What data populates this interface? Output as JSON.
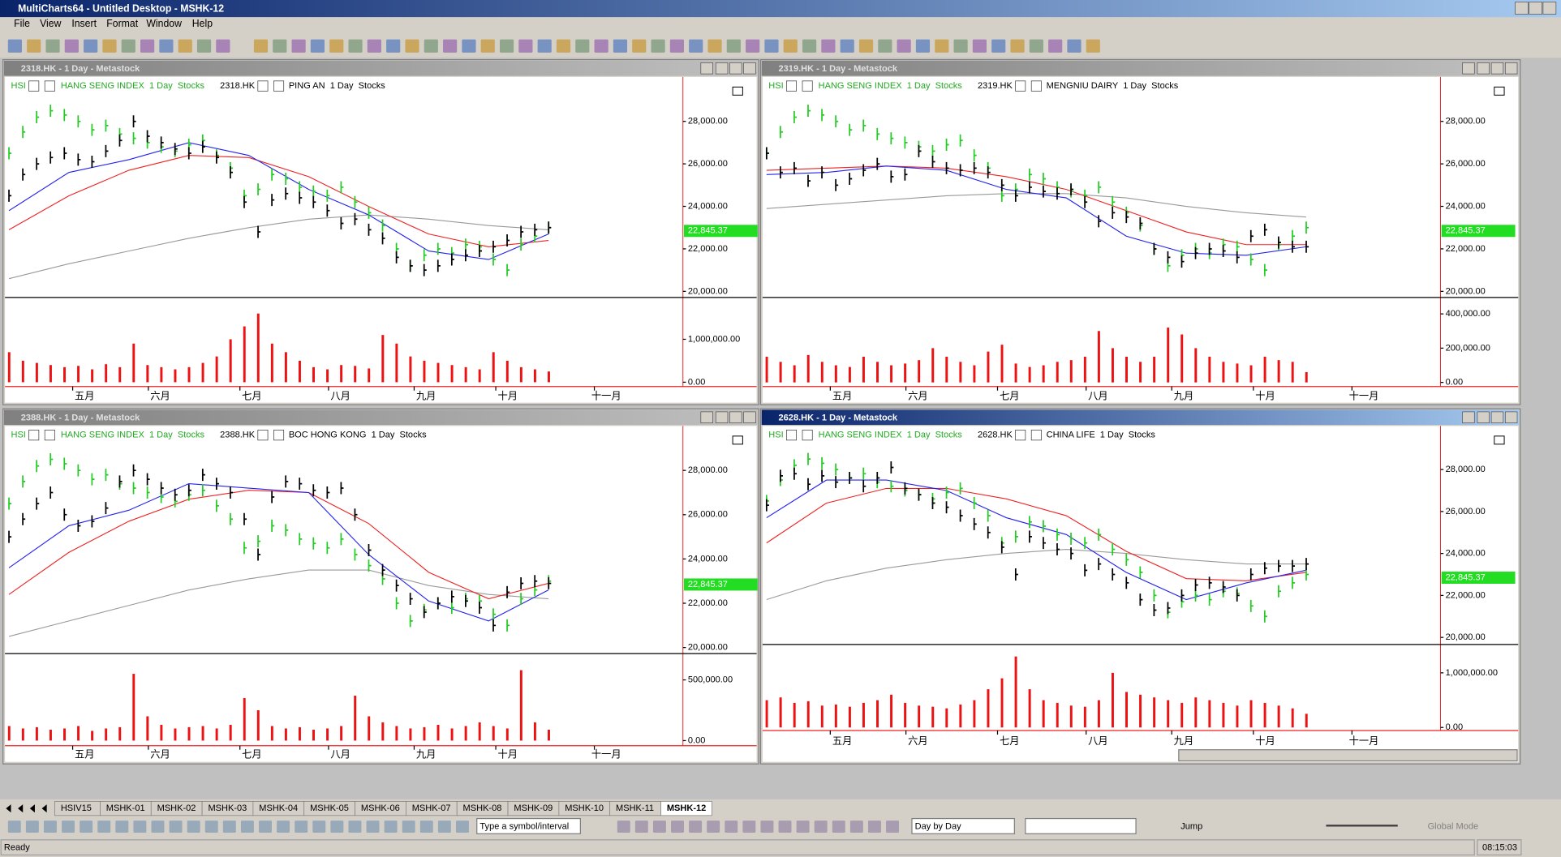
{
  "window": {
    "title": "MultiCharts64 - Untitled Desktop - MSHK-12"
  },
  "menu": [
    "File",
    "View",
    "Insert",
    "Format",
    "Window",
    "Help"
  ],
  "hsi": {
    "label": "HSI",
    "description": "HANG SENG INDEX  1 Day  Stocks",
    "color": "#22cc22",
    "values": [
      26500,
      27500,
      28200,
      28500,
      28300,
      28000,
      27600,
      27800,
      27400,
      27200,
      27000,
      26800,
      26600,
      26900,
      27100,
      26400,
      25800,
      24500,
      24800,
      25500,
      25300,
      24900,
      24700,
      24500,
      24900,
      24200,
      23700,
      23100,
      22000,
      21200,
      21700,
      22000,
      21800,
      22200,
      22100,
      21500,
      21000,
      22200,
      22600,
      23000
    ]
  },
  "months": [
    "五月",
    "六月",
    "七月",
    "八月",
    "九月",
    "十月",
    "十一月"
  ],
  "panels": [
    {
      "title": "2318.HK - 1 Day - Metastock",
      "symbol": "2318.HK",
      "description": "PING AN  1 Day  Stocks",
      "active": false,
      "price": {
        "ylim": [
          19760,
          29950
        ],
        "yticks": [
          {
            "value": 20000,
            "label": "20,000.00"
          },
          {
            "value": 22000,
            "label": "22,000.00"
          },
          {
            "value": 24000,
            "label": "24,000.00"
          },
          {
            "value": 26000,
            "label": "26,000.00"
          },
          {
            "value": 28000,
            "label": "28,000.00"
          }
        ],
        "last": {
          "value": 22845.37,
          "label": "22,845.37"
        },
        "color": "#000000",
        "values": [
          24500,
          25500,
          26000,
          26300,
          26500,
          26200,
          26100,
          26600,
          27100,
          28000,
          27300,
          27000,
          26700,
          26500,
          26800,
          26300,
          25600,
          24200,
          22800,
          24300,
          24600,
          24400,
          24200,
          23800,
          23200,
          23400,
          22900,
          22500,
          21600,
          21200,
          21000,
          21200,
          21500,
          21700,
          21900,
          22100,
          22400,
          22800,
          22900,
          23000
        ]
      },
      "ma": [
        {
          "color": "#999999",
          "values": [
            20600,
            21300,
            21900,
            22500,
            23000,
            23400,
            23600,
            23400,
            23100,
            22900
          ]
        },
        {
          "color": "#ee2222",
          "values": [
            22900,
            24500,
            25700,
            26400,
            26300,
            25400,
            24000,
            22700,
            22100,
            22400
          ]
        },
        {
          "color": "#2222ee",
          "values": [
            23800,
            25600,
            26200,
            27000,
            26400,
            24800,
            23600,
            21900,
            21500,
            22700
          ]
        }
      ],
      "volume": {
        "ylim": [
          -100000,
          1950000
        ],
        "yticks": [
          {
            "value": 0,
            "label": "0.00"
          },
          {
            "value": 1000000,
            "label": "1,000,000.00"
          }
        ],
        "color": "#ee1111",
        "values": [
          700000,
          500000,
          450000,
          400000,
          350000,
          380000,
          300000,
          420000,
          350000,
          900000,
          400000,
          350000,
          300000,
          350000,
          450000,
          600000,
          1000000,
          1300000,
          1600000,
          900000,
          700000,
          500000,
          350000,
          300000,
          400000,
          380000,
          320000,
          1100000,
          900000,
          600000,
          500000,
          450000,
          400000,
          350000,
          300000,
          700000,
          500000,
          350000,
          300000,
          250000
        ]
      }
    },
    {
      "title": "2319.HK - 1 Day - Metastock",
      "symbol": "2319.HK",
      "description": "MENGNIU DAIRY  1 Day  Stocks",
      "active": false,
      "price": {
        "ylim": [
          19760,
          29950
        ],
        "yticks": [
          {
            "value": 20000,
            "label": "20,000.00"
          },
          {
            "value": 22000,
            "label": "22,000.00"
          },
          {
            "value": 24000,
            "label": "24,000.00"
          },
          {
            "value": 26000,
            "label": "26,000.00"
          },
          {
            "value": 28000,
            "label": "28,000.00"
          }
        ],
        "last": {
          "value": 22845.37,
          "label": "22,845.37"
        },
        "color": "#000000",
        "values": [
          26500,
          25600,
          25800,
          25200,
          25600,
          25000,
          25300,
          25700,
          26000,
          25400,
          25500,
          26600,
          26100,
          25800,
          25700,
          25800,
          25600,
          25000,
          24500,
          24900,
          24700,
          24600,
          24800,
          24200,
          23300,
          23700,
          23500,
          23200,
          22000,
          21600,
          21400,
          21800,
          22000,
          21900,
          21600,
          22600,
          22900,
          22300,
          22100,
          22100
        ]
      },
      "ma": [
        {
          "color": "#999999",
          "values": [
            23900,
            24100,
            24300,
            24500,
            24600,
            24600,
            24400,
            24000,
            23700,
            23500
          ]
        },
        {
          "color": "#ee2222",
          "values": [
            25700,
            25800,
            25900,
            25800,
            25400,
            24800,
            23800,
            22800,
            22200,
            22200
          ]
        },
        {
          "color": "#2222ee",
          "values": [
            25500,
            25600,
            25900,
            25700,
            24800,
            24400,
            22600,
            21800,
            21700,
            22100
          ]
        }
      ],
      "volume": {
        "ylim": [
          -24000,
          490000
        ],
        "yticks": [
          {
            "value": 0,
            "label": "0.00"
          },
          {
            "value": 200000,
            "label": "200,000.00"
          },
          {
            "value": 400000,
            "label": "400,000.00"
          }
        ],
        "color": "#ee1111",
        "values": [
          150000,
          120000,
          100000,
          160000,
          120000,
          100000,
          90000,
          150000,
          120000,
          100000,
          110000,
          130000,
          200000,
          150000,
          120000,
          100000,
          180000,
          220000,
          110000,
          90000,
          100000,
          120000,
          130000,
          150000,
          300000,
          200000,
          150000,
          120000,
          150000,
          320000,
          280000,
          200000,
          150000,
          120000,
          110000,
          100000,
          150000,
          130000,
          120000,
          60000
        ]
      }
    },
    {
      "title": "2388.HK - 1 Day - Metastock",
      "symbol": "2388.HK",
      "description": "BOC HONG KONG  1 Day  Stocks",
      "active": false,
      "price": {
        "ylim": [
          19770,
          29870
        ],
        "yticks": [
          {
            "value": 20000,
            "label": "20,000.00"
          },
          {
            "value": 22000,
            "label": "22,000.00"
          },
          {
            "value": 24000,
            "label": "24,000.00"
          },
          {
            "value": 26000,
            "label": "26,000.00"
          },
          {
            "value": 28000,
            "label": "28,000.00"
          }
        ],
        "last": {
          "value": 22845.37,
          "label": "22,845.37"
        },
        "color": "#000000",
        "values": [
          25000,
          25800,
          26500,
          27000,
          26000,
          25500,
          25700,
          26300,
          27500,
          28000,
          27600,
          27200,
          26900,
          27100,
          27800,
          27400,
          27000,
          25800,
          24200,
          26800,
          27500,
          27400,
          27100,
          27000,
          27200,
          26000,
          24400,
          23500,
          22800,
          22200,
          21600,
          22000,
          22300,
          22100,
          21800,
          21000,
          22500,
          22900,
          23000,
          22900
        ]
      },
      "ma": [
        {
          "color": "#999999",
          "values": [
            20500,
            21200,
            21900,
            22600,
            23100,
            23500,
            23500,
            22800,
            22400,
            22200
          ]
        },
        {
          "color": "#ee2222",
          "values": [
            22400,
            24300,
            25700,
            26700,
            27100,
            27000,
            25600,
            23400,
            22200,
            22900
          ]
        },
        {
          "color": "#2222ee",
          "values": [
            23600,
            25500,
            26200,
            27400,
            27200,
            27000,
            24200,
            22100,
            21200,
            22600
          ]
        }
      ],
      "volume": {
        "ylim": [
          -42000,
          708000
        ],
        "yticks": [
          {
            "value": 0,
            "label": "0.00"
          },
          {
            "value": 500000,
            "label": "500,000.00"
          }
        ],
        "color": "#ee1111",
        "values": [
          120000,
          100000,
          110000,
          90000,
          100000,
          120000,
          80000,
          100000,
          110000,
          550000,
          200000,
          130000,
          100000,
          110000,
          120000,
          100000,
          130000,
          350000,
          250000,
          120000,
          100000,
          110000,
          90000,
          100000,
          120000,
          370000,
          200000,
          150000,
          120000,
          100000,
          110000,
          130000,
          100000,
          120000,
          150000,
          120000,
          100000,
          580000,
          150000,
          90000
        ]
      }
    },
    {
      "title": "2628.HK - 1 Day - Metastock",
      "symbol": "2628.HK",
      "description": "CHINA LIFE  1 Day  Stocks",
      "active": true,
      "price": {
        "ylim": [
          19710,
          29930
        ],
        "yticks": [
          {
            "value": 20000,
            "label": "20,000.00"
          },
          {
            "value": 22000,
            "label": "22,000.00"
          },
          {
            "value": 24000,
            "label": "24,000.00"
          },
          {
            "value": 26000,
            "label": "26,000.00"
          },
          {
            "value": 28000,
            "label": "28,000.00"
          }
        ],
        "last": {
          "value": 22845.37,
          "label": "22,845.37"
        },
        "color": "#000000",
        "values": [
          26300,
          27700,
          27800,
          27300,
          27700,
          27400,
          27600,
          27200,
          27600,
          28100,
          27100,
          26800,
          26400,
          26200,
          25800,
          25400,
          25000,
          24300,
          23000,
          24800,
          24500,
          24200,
          24000,
          23200,
          23500,
          23000,
          22600,
          21800,
          21300,
          21400,
          22000,
          22500,
          22600,
          22400,
          22000,
          23000,
          23300,
          23400,
          23400,
          23500
        ]
      },
      "ma": [
        {
          "color": "#999999",
          "values": [
            21800,
            22700,
            23300,
            23700,
            24000,
            24200,
            24000,
            23700,
            23500,
            23500
          ]
        },
        {
          "color": "#ee2222",
          "values": [
            24500,
            26400,
            27100,
            27100,
            26600,
            25800,
            24100,
            22800,
            22700,
            23100
          ]
        },
        {
          "color": "#2222ee",
          "values": [
            25700,
            27500,
            27500,
            27000,
            25700,
            24900,
            23100,
            21800,
            22600,
            23200
          ]
        }
      ],
      "volume": {
        "ylim": [
          -56000,
          1500000
        ],
        "yticks": [
          {
            "value": 0,
            "label": "0.00"
          },
          {
            "value": 1000000,
            "label": "1,000,000.00"
          }
        ],
        "color": "#ee1111",
        "values": [
          500000,
          550000,
          450000,
          480000,
          400000,
          420000,
          380000,
          450000,
          500000,
          600000,
          450000,
          400000,
          380000,
          350000,
          420000,
          500000,
          700000,
          900000,
          1300000,
          700000,
          500000,
          450000,
          400000,
          380000,
          500000,
          1000000,
          650000,
          600000,
          550000,
          500000,
          450000,
          550000,
          500000,
          450000,
          400000,
          500000,
          450000,
          400000,
          350000,
          250000
        ]
      }
    }
  ],
  "tabs": [
    "HSIV15",
    "MSHK-01",
    "MSHK-02",
    "MSHK-03",
    "MSHK-04",
    "MSHK-05",
    "MSHK-06",
    "MSHK-07",
    "MSHK-08",
    "MSHK-09",
    "MSHK-10",
    "MSHK-11",
    "MSHK-12"
  ],
  "bottom_toolbar": {
    "symbol_box": "Type a symbol/interval",
    "mode": "Day by Day",
    "jump": "Jump",
    "global_mode": "Global Mode"
  },
  "status": {
    "text": "Ready",
    "time": "08:15:03"
  }
}
